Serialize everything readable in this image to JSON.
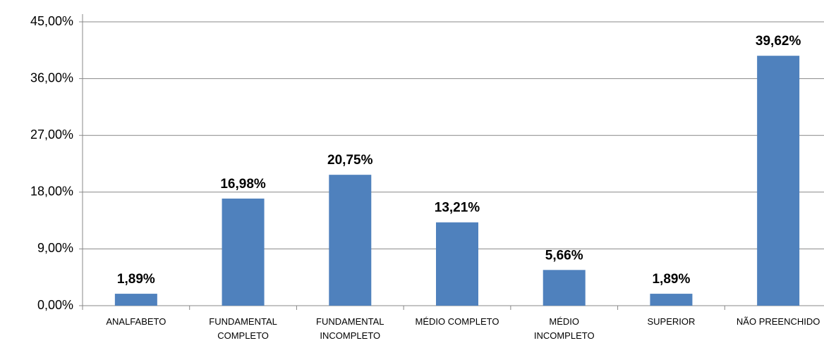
{
  "chart_data": {
    "type": "bar",
    "categories": [
      "ANALFABETO",
      "FUNDAMENTAL\nCOMPLETO",
      "FUNDAMENTAL\nINCOMPLETO",
      "MÉDIO COMPLETO",
      "MÉDIO\nINCOMPLETO",
      "SUPERIOR",
      "NÃO PREENCHIDO"
    ],
    "values": [
      1.89,
      16.98,
      20.75,
      13.21,
      5.66,
      1.89,
      39.62
    ],
    "value_labels": [
      "1,89%",
      "16,98%",
      "20,75%",
      "13,21%",
      "5,66%",
      "1,89%",
      "39,62%"
    ],
    "color": "#4f81bd",
    "ylim": [
      0,
      45
    ],
    "yticks": [
      {
        "value": 0,
        "label": "0,00%"
      },
      {
        "value": 9,
        "label": "9,00%"
      },
      {
        "value": 18,
        "label": "18,00%"
      },
      {
        "value": 27,
        "label": "27,00%"
      },
      {
        "value": 36,
        "label": "36,00%"
      },
      {
        "value": 45,
        "label": "45,00%"
      }
    ],
    "grid": true
  }
}
